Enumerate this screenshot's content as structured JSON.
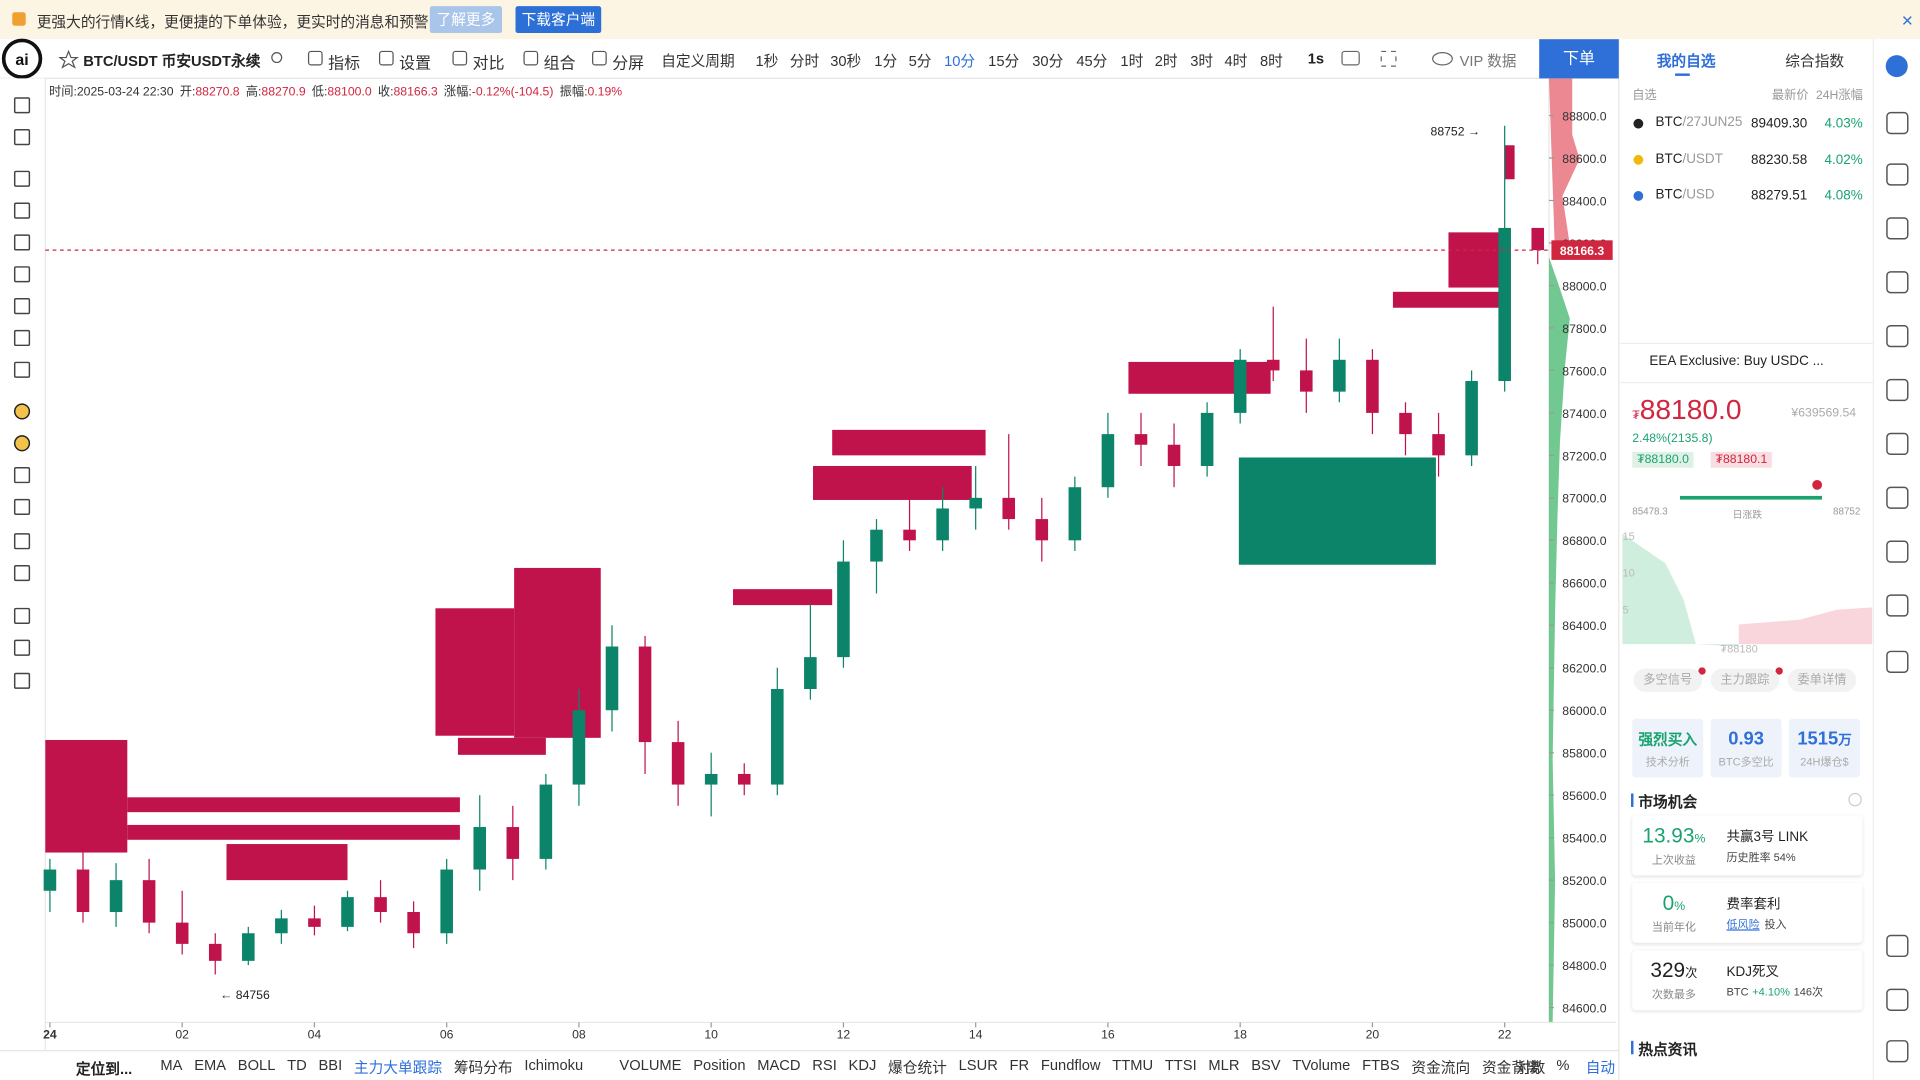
{
  "banner": {
    "text": "更强大的行情K线，更便捷的下单体验，更实时的消息和预警",
    "learn_more": "了解更多",
    "download": "下载客户端"
  },
  "toolbar": {
    "symbol": "BTC/USDT 币安USDT永续",
    "items": [
      "指标",
      "设置",
      "对比",
      "组合",
      "分屏"
    ],
    "custom_period": "自定义周期",
    "periods": [
      "1秒",
      "分时",
      "30秒",
      "1分",
      "5分",
      "10分",
      "15分",
      "30分",
      "45分",
      "1时",
      "2时",
      "3时",
      "4时",
      "8时"
    ],
    "active_period": "10分",
    "second": "1s",
    "vip": "VIP 数据",
    "order": "下单"
  },
  "ohlc_bar": [
    {
      "k": "时间:",
      "v": "2025-03-24 22:30"
    },
    {
      "k": "开:",
      "v": "88270.8"
    },
    {
      "k": "高:",
      "v": "88270.9"
    },
    {
      "k": "低:",
      "v": "88100.0"
    },
    {
      "k": "收:",
      "v": "88166.3"
    },
    {
      "k": "涨幅:",
      "v": "-0.12%(-104.5)"
    },
    {
      "k": "振幅:",
      "v": "0.19%"
    }
  ],
  "bottom_bar": {
    "locate": "定位到...",
    "indicators": [
      "MA",
      "EMA",
      "BOLL",
      "TD",
      "BBI",
      "主力大单跟踪",
      "筹码分布",
      "Ichimoku",
      "VOLUME",
      "Position",
      "MACD",
      "RSI",
      "KDJ",
      "爆仓统计",
      "LSUR",
      "FR",
      "Fundflow",
      "TTMU",
      "TTSI",
      "MLR",
      "BSV",
      "TVolume",
      "FTBS",
      "资金流向",
      "资金背离"
    ],
    "active_indicator": "主力大单跟踪",
    "right": [
      "对数",
      "%",
      "自动"
    ]
  },
  "chart_data": {
    "type": "candlestick",
    "x": [
      0,
      0.5,
      1,
      1.5,
      2,
      2.5,
      3,
      3.5,
      4,
      4.5,
      5,
      5.5,
      6,
      6.5,
      7,
      7.5,
      8,
      8.5,
      9,
      9.5,
      10,
      10.5,
      11,
      11.5,
      12,
      12.5,
      13,
      13.5,
      14,
      14.5,
      15,
      15.5,
      16,
      16.5,
      17,
      17.5,
      18,
      18.5,
      19,
      19.5,
      20,
      20.5,
      21,
      21.5,
      22,
      22.5
    ],
    "open": [
      85150,
      85250,
      85050,
      85200,
      85000,
      84900,
      84820,
      84950,
      85020,
      84980,
      85120,
      85050,
      84950,
      85250,
      85450,
      85300,
      85650,
      86000,
      86300,
      85850,
      85650,
      85700,
      85650,
      86100,
      86250,
      86700,
      86850,
      86800,
      86950,
      87000,
      86900,
      86800,
      87050,
      87300,
      87250,
      87150,
      87400,
      87650,
      87600,
      87500,
      87650,
      87400,
      87300,
      87200,
      87550,
      88270.8
    ],
    "high": [
      85300,
      85350,
      85280,
      85300,
      85150,
      84950,
      84980,
      85060,
      85080,
      85150,
      85200,
      85100,
      85300,
      85600,
      85550,
      85700,
      86100,
      86400,
      86350,
      85950,
      85800,
      85750,
      86200,
      86500,
      86800,
      86900,
      87000,
      87050,
      87150,
      87300,
      87000,
      87100,
      87400,
      87400,
      87350,
      87450,
      87700,
      87900,
      87750,
      87750,
      87700,
      87450,
      87400,
      87600,
      88752,
      88270.9
    ],
    "low": [
      85050,
      85000,
      84980,
      84950,
      84850,
      84756,
      84800,
      84900,
      84940,
      84960,
      85000,
      84880,
      84900,
      85150,
      85200,
      85250,
      85550,
      85900,
      85700,
      85550,
      85500,
      85600,
      85600,
      86050,
      86200,
      86550,
      86750,
      86750,
      86850,
      86850,
      86700,
      86750,
      87000,
      87150,
      87050,
      87100,
      87350,
      87550,
      87400,
      87450,
      87300,
      87200,
      87100,
      87150,
      87500,
      88100.0
    ],
    "close": [
      85250,
      85050,
      85200,
      85000,
      84900,
      84820,
      84950,
      85020,
      84980,
      85120,
      85050,
      84950,
      85250,
      85450,
      85300,
      85650,
      86000,
      86300,
      85850,
      85650,
      85700,
      85650,
      86100,
      86250,
      86700,
      86850,
      86800,
      86950,
      87000,
      86900,
      86800,
      87050,
      87300,
      87250,
      87150,
      87400,
      87650,
      87600,
      87500,
      87650,
      87400,
      87300,
      87200,
      87550,
      88270.8,
      88166.3
    ],
    "up_color": "#0b8469",
    "down_color": "#c0134b",
    "xlim": [
      -0.07,
      22.67
    ],
    "ylim": [
      84530,
      88975
    ],
    "xticks": [
      {
        "value": 0,
        "label": "24"
      },
      {
        "value": 2,
        "label": "02"
      },
      {
        "value": 4,
        "label": "04"
      },
      {
        "value": 6,
        "label": "06"
      },
      {
        "value": 8,
        "label": "08"
      },
      {
        "value": 10,
        "label": "10"
      },
      {
        "value": 12,
        "label": "12"
      },
      {
        "value": 14,
        "label": "14"
      },
      {
        "value": 16,
        "label": "16"
      },
      {
        "value": 18,
        "label": "18"
      },
      {
        "value": 20,
        "label": "20"
      },
      {
        "value": 22,
        "label": "22"
      }
    ],
    "yticks": [
      {
        "value": 84600,
        "label": "84600.0"
      },
      {
        "value": 84800,
        "label": "84800.0"
      },
      {
        "value": 85000,
        "label": "85000.0"
      },
      {
        "value": 85200,
        "label": "85200.0"
      },
      {
        "value": 85400,
        "label": "85400.0"
      },
      {
        "value": 85600,
        "label": "85600.0"
      },
      {
        "value": 85800,
        "label": "85800.0"
      },
      {
        "value": 86000,
        "label": "86000.0"
      },
      {
        "value": 86200,
        "label": "86200.0"
      },
      {
        "value": 86400,
        "label": "86400.0"
      },
      {
        "value": 86600,
        "label": "86600.0"
      },
      {
        "value": 86800,
        "label": "86800.0"
      },
      {
        "value": 87000,
        "label": "87000.0"
      },
      {
        "value": 87200,
        "label": "87200.0"
      },
      {
        "value": 87400,
        "label": "87400.0"
      },
      {
        "value": 87600,
        "label": "87600.0"
      },
      {
        "value": 87800,
        "label": "87800.0"
      },
      {
        "value": 88000,
        "label": "88000.0"
      },
      {
        "value": 88200,
        "label": "88200.0"
      },
      {
        "value": 88400,
        "label": "88400.0"
      },
      {
        "value": 88600,
        "label": "88600.0"
      },
      {
        "value": 88800,
        "label": "88800.0"
      }
    ],
    "last_price": 88166.3,
    "annotations": [
      {
        "x": 22,
        "value": 88752,
        "label": "88752 →"
      },
      {
        "x": 2.5,
        "value": 84756,
        "label": "← 84756"
      }
    ],
    "blocks": [
      {
        "x": [
          -0.07,
          1.17
        ],
        "y": [
          85330,
          85860
        ],
        "color": "#c0134b"
      },
      {
        "x": [
          1.17,
          6.2
        ],
        "y": [
          85520,
          85590
        ],
        "color": "#c0134b"
      },
      {
        "x": [
          1.17,
          6.2
        ],
        "y": [
          85390,
          85460
        ],
        "color": "#c0134b"
      },
      {
        "x": [
          2.67,
          4.5
        ],
        "y": [
          85200,
          85370
        ],
        "color": "#c0134b"
      },
      {
        "x": [
          5.83,
          7.02
        ],
        "y": [
          85880,
          86480
        ],
        "color": "#c0134b"
      },
      {
        "x": [
          7.02,
          8.33
        ],
        "y": [
          85870,
          86670
        ],
        "color": "#c0134b"
      },
      {
        "x": [
          6.17,
          7.5
        ],
        "y": [
          85790,
          85870
        ],
        "color": "#c0134b"
      },
      {
        "x": [
          10.33,
          11.83
        ],
        "y": [
          86495,
          86570
        ],
        "color": "#c0134b"
      },
      {
        "x": [
          11.83,
          14.15
        ],
        "y": [
          87200,
          87320
        ],
        "color": "#c0134b"
      },
      {
        "x": [
          11.54,
          13.94
        ],
        "y": [
          86990,
          87150
        ],
        "color": "#c0134b"
      },
      {
        "x": [
          16.31,
          18.46
        ],
        "y": [
          87490,
          87640
        ],
        "color": "#c0134b"
      },
      {
        "x": [
          17.98,
          20.96
        ],
        "y": [
          86685,
          87190
        ],
        "color": "#0b8469"
      },
      {
        "x": [
          20.31,
          21.96
        ],
        "y": [
          87895,
          87970
        ],
        "color": "#c0134b"
      },
      {
        "x": [
          21.15,
          21.96
        ],
        "y": [
          87990,
          88250
        ],
        "color": "#c0134b"
      },
      {
        "x": [
          22.0,
          22.15
        ],
        "y": [
          88500,
          88660
        ],
        "color": "#c0134b"
      }
    ]
  },
  "sidebar": {
    "tabs": [
      "我的自选",
      "综合指数"
    ],
    "list_header": {
      "filter": "自选",
      "price": "最新价",
      "change": "24H涨幅"
    },
    "watchlist": [
      {
        "base": "BTC",
        "quote": "/27JUN25",
        "price": "89409.30",
        "change": "4.03%"
      },
      {
        "base": "BTC",
        "quote": "/USDT",
        "price": "88230.58",
        "change": "4.02%"
      },
      {
        "base": "BTC",
        "quote": "/USD",
        "price": "88279.51",
        "change": "4.08%"
      }
    ],
    "news": "EEA Exclusive: Buy USDC ...",
    "price": {
      "currency": "₮",
      "last": "88180.0",
      "cny": "¥639569.54",
      "change": "2.48%(2135.8)",
      "bid": "₮88180.0",
      "ask": "₮88180.1"
    },
    "range": {
      "low": "85478.3",
      "label": "日涨跌",
      "high": "88752"
    },
    "mini_axis": [
      "15",
      "10",
      "5"
    ],
    "mini_price": "₮88180",
    "buttons": [
      "多空信号",
      "主力跟踪",
      "委单详情"
    ],
    "stats": [
      {
        "value": "强烈买入",
        "label": "技术分析"
      },
      {
        "value": "0.93",
        "label": "BTC多空比"
      },
      {
        "value": "1515",
        "unit": "万",
        "label": "24H爆仓$"
      }
    ],
    "opportunities_title": "市场机会",
    "opportunities": [
      {
        "value": "13.93",
        "unit": "%",
        "label": "上次收益",
        "title": "共赢3号 LINK",
        "detail": "历史胜率 54%"
      },
      {
        "value": "0",
        "unit": "%",
        "label": "当前年化",
        "title": "费率套利",
        "tag": "低风险",
        "detail": "投入"
      },
      {
        "value": "329",
        "unit": "次",
        "label": "次数最多",
        "title": "KDJ死叉",
        "detail": "BTC",
        "detail_change": "+4.10%",
        "detail_count": "146次"
      }
    ],
    "hot_news": "热点资讯"
  }
}
